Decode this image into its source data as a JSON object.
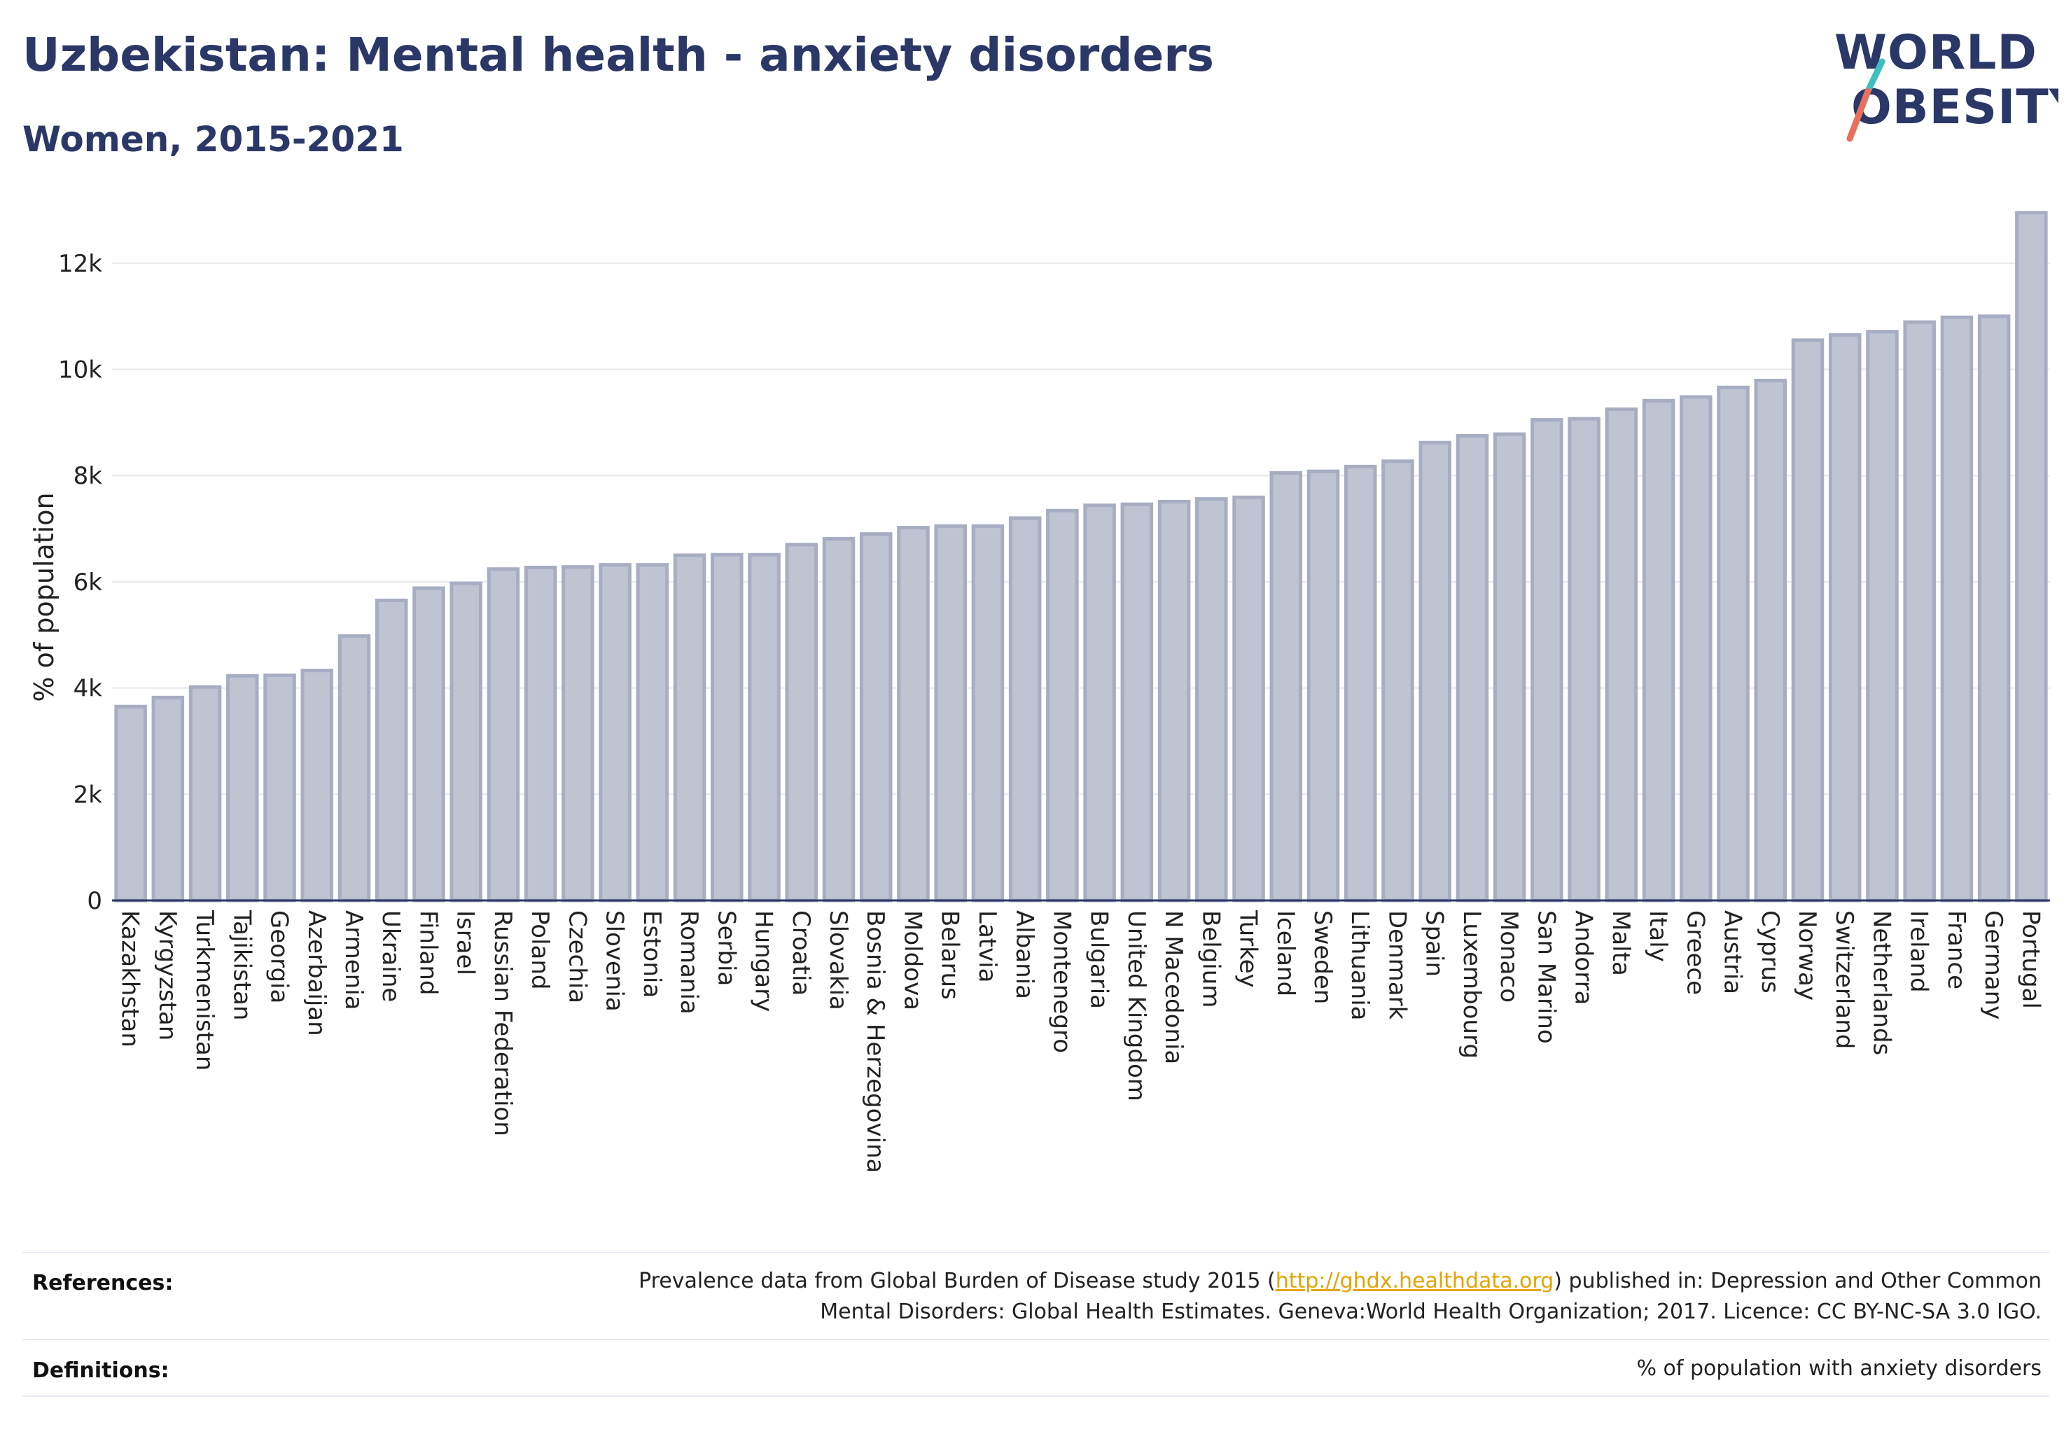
{
  "header": {
    "title": "Uzbekistan: Mental health - anxiety disorders",
    "subtitle": "Women, 2015-2021"
  },
  "logo": {
    "line1": "WORLD",
    "line2": "OBESITY",
    "accent_colors": [
      "#3bbfc0",
      "#e8705c"
    ]
  },
  "chart_data": {
    "type": "bar",
    "ylabel": "% of population",
    "xlabel": "",
    "ylim": [
      0,
      13000
    ],
    "yticks": [
      0,
      2000,
      4000,
      6000,
      8000,
      10000,
      12000
    ],
    "ytick_labels": [
      "0",
      "2k",
      "4k",
      "6k",
      "8k",
      "10k",
      "12k"
    ],
    "grid": true,
    "bar_color": "#bfc4d3",
    "bar_edge_color": "#a7adc2",
    "categories": [
      "Kazakhstan",
      "Kyrgyzstan",
      "Turkmenistan",
      "Tajikistan",
      "Georgia",
      "Azerbaijan",
      "Armenia",
      "Ukraine",
      "Finland",
      "Israel",
      "Russian Federation",
      "Poland",
      "Czechia",
      "Slovenia",
      "Estonia",
      "Romania",
      "Serbia",
      "Hungary",
      "Croatia",
      "Slovakia",
      "Bosnia & Herzegovina",
      "Moldova",
      "Belarus",
      "Latvia",
      "Albania",
      "Montenegro",
      "Bulgaria",
      "United Kingdom",
      "N Macedonia",
      "Belgium",
      "Turkey",
      "Iceland",
      "Sweden",
      "Lithuania",
      "Denmark",
      "Spain",
      "Luxembourg",
      "Monaco",
      "San Marino",
      "Andorra",
      "Malta",
      "Italy",
      "Greece",
      "Austria",
      "Cyprus",
      "Norway",
      "Switzerland",
      "Netherlands",
      "Ireland",
      "France",
      "Germany",
      "Portugal"
    ],
    "values": [
      3650,
      3820,
      4020,
      4230,
      4240,
      4330,
      4980,
      5650,
      5880,
      5970,
      6240,
      6270,
      6280,
      6320,
      6320,
      6500,
      6510,
      6510,
      6700,
      6810,
      6900,
      7020,
      7050,
      7050,
      7200,
      7340,
      7440,
      7460,
      7510,
      7560,
      7590,
      8050,
      8080,
      8170,
      8270,
      8620,
      8750,
      8780,
      9050,
      9070,
      9250,
      9410,
      9480,
      9660,
      9790,
      10550,
      10650,
      10710,
      10890,
      10980,
      11000,
      12950
    ]
  },
  "footer": {
    "references_label": "References:",
    "references_line1_pre": "Prevalence data from Global Burden of Disease study 2015 (",
    "references_link": "http://ghdx.healthdata.org",
    "references_line1_post": ") published in: Depression and Other Common",
    "references_line2": "Mental Disorders: Global Health Estimates. Geneva:World Health Organization; 2017. Licence: CC BY-NC-SA 3.0 IGO.",
    "definitions_label": "Definitions:",
    "definitions_text": "% of population with anxiety disorders"
  }
}
